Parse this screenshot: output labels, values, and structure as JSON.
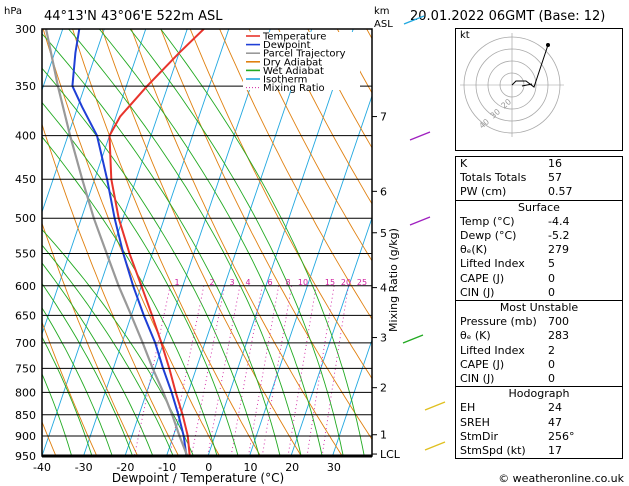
{
  "header": {
    "location": "44°13'N  43°06'E  522m  ASL",
    "datetime": "20.01.2022  06GMT  (Base: 12)",
    "hpa_label": "hPa",
    "km_label": "km",
    "asl_label": "ASL",
    "mixing_ratio_label": "Mixing Ratio (g/kg)",
    "watermark": "© weatheronline.co.uk"
  },
  "legend": [
    {
      "label": "Temperature",
      "color": "#e8342c",
      "style": "solid"
    },
    {
      "label": "Dewpoint",
      "color": "#1f3fd6",
      "style": "solid"
    },
    {
      "label": "Parcel Trajectory",
      "color": "#999999",
      "style": "solid"
    },
    {
      "label": "Dry Adiabat",
      "color": "#e08010",
      "style": "solid"
    },
    {
      "label": "Wet Adiabat",
      "color": "#22aa22",
      "style": "solid"
    },
    {
      "label": "Isotherm",
      "color": "#22a8e0",
      "style": "solid"
    },
    {
      "label": "Mixing Ratio",
      "color": "#d020a0",
      "style": "dotted"
    }
  ],
  "chart_data": {
    "type": "line",
    "title": "",
    "xlabel": "Dewpoint / Temperature (°C)",
    "ylabel": "hPa",
    "x_ticks": [
      "-40",
      "-30",
      "-20",
      "-10",
      "0",
      "10",
      "20",
      "30"
    ],
    "p_ticks": [
      "300",
      "350",
      "400",
      "450",
      "500",
      "550",
      "600",
      "650",
      "700",
      "750",
      "800",
      "850",
      "900",
      "950"
    ],
    "km_ticks": [
      {
        "p": 380,
        "label": "7"
      },
      {
        "p": 465,
        "label": "6"
      },
      {
        "p": 520,
        "label": "5"
      },
      {
        "p": 603,
        "label": "4"
      },
      {
        "p": 690,
        "label": "3"
      },
      {
        "p": 790,
        "label": "2"
      },
      {
        "p": 897,
        "label": "1"
      },
      {
        "p": 945,
        "label": "LCL"
      }
    ],
    "mixing_ratio_labels": [
      "1",
      "2",
      "3",
      "4",
      "6",
      "8",
      "10",
      "15",
      "20",
      "25"
    ],
    "series": [
      {
        "name": "Temperature",
        "p": [
          950,
          900,
          850,
          800,
          750,
          700,
          650,
          600,
          550,
          500,
          450,
          400,
          380,
          350,
          320,
          300
        ],
        "t": [
          -4.4,
          -6.5,
          -9.5,
          -13,
          -16.5,
          -20.5,
          -25,
          -30,
          -35.5,
          -41,
          -46,
          -50,
          -49,
          -45,
          -40,
          -36
        ]
      },
      {
        "name": "Dewpoint",
        "p": [
          950,
          900,
          850,
          800,
          750,
          700,
          650,
          600,
          550,
          500,
          450,
          400,
          370,
          350,
          320,
          300
        ],
        "t": [
          -5.2,
          -7.5,
          -10.5,
          -14,
          -18,
          -22,
          -27,
          -32,
          -37,
          -42,
          -47,
          -53,
          -59,
          -63,
          -65,
          -66
        ]
      },
      {
        "name": "Parcel Trajectory",
        "p": [
          950,
          900,
          850,
          800,
          750,
          700,
          650,
          600,
          550,
          500,
          450,
          400,
          350,
          300
        ],
        "t": [
          -5,
          -8.5,
          -12,
          -16,
          -20.5,
          -25,
          -30,
          -35.5,
          -41,
          -47,
          -53,
          -59.5,
          -66.5,
          -74
        ]
      }
    ]
  },
  "hodograph": {
    "unit_label": "kt",
    "ring_labels": [
      "40",
      "30",
      "20"
    ]
  },
  "indices": [
    {
      "label": "K",
      "value": "16"
    },
    {
      "label": "Totals Totals",
      "value": "57"
    },
    {
      "label": "PW (cm)",
      "value": "0.57"
    }
  ],
  "sections": [
    {
      "title": "Surface",
      "rows": [
        {
          "label": "Temp (°C)",
          "value": "-4.4"
        },
        {
          "label": "Dewp (°C)",
          "value": "-5.2"
        },
        {
          "label": "θₑ(K)",
          "value": "279"
        },
        {
          "label": "Lifted Index",
          "value": "5"
        },
        {
          "label": "CAPE (J)",
          "value": "0"
        },
        {
          "label": "CIN (J)",
          "value": "0"
        }
      ]
    },
    {
      "title": "Most Unstable",
      "rows": [
        {
          "label": "Pressure (mb)",
          "value": "700"
        },
        {
          "label": "θₑ (K)",
          "value": "283"
        },
        {
          "label": "Lifted Index",
          "value": "2"
        },
        {
          "label": "CAPE (J)",
          "value": "0"
        },
        {
          "label": "CIN (J)",
          "value": "0"
        }
      ]
    },
    {
      "title": "Hodograph",
      "rows": [
        {
          "label": "EH",
          "value": "24"
        },
        {
          "label": "SREH",
          "value": "47"
        },
        {
          "label": "StmDir",
          "value": "256°"
        },
        {
          "label": "StmSpd (kt)",
          "value": "17"
        }
      ]
    }
  ]
}
